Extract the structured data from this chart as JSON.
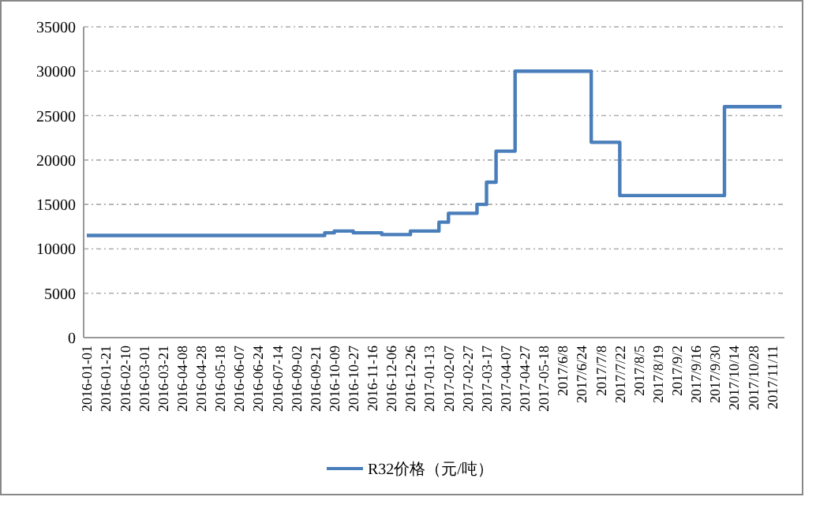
{
  "chart_data": {
    "type": "step",
    "categories": [
      "2016-01-01",
      null,
      "2016-01-21",
      null,
      "2016-02-10",
      null,
      "2016-03-01",
      null,
      "2016-03-21",
      null,
      "2016-04-08",
      null,
      "2016-04-28",
      null,
      "2016-05-18",
      null,
      "2016-06-07",
      null,
      "2016-06-24",
      null,
      "2016-07-14",
      null,
      "2016-09-02",
      null,
      "2016-09-21",
      null,
      "2016-10-09",
      null,
      "2016-10-27",
      null,
      "2016-11-16",
      null,
      "2016-12-06",
      null,
      "2016-12-26",
      null,
      "2017-01-13",
      null,
      "2017-02-07",
      null,
      "2017-02-27",
      null,
      "2017-03-17",
      null,
      "2017-04-07",
      null,
      "2017-04-27",
      null,
      "2017-05-18",
      null,
      "2017/6/8",
      null,
      "2017/6/24",
      null,
      "2017/7/8",
      null,
      "2017/7/22",
      null,
      "2017/8/5",
      null,
      "2017/8/19",
      null,
      "2017/9/2",
      null,
      "2017/9/16",
      null,
      "2017/9/30",
      null,
      "2017/10/14",
      null,
      "2017/10/28",
      null,
      "2017/11/11",
      null
    ],
    "series": [
      {
        "name": "R32价格（元/吨）",
        "color": "#4a7ebb",
        "values": [
          11500,
          11500,
          11500,
          11500,
          11500,
          11500,
          11500,
          11500,
          11500,
          11500,
          11500,
          11500,
          11500,
          11500,
          11500,
          11500,
          11500,
          11500,
          11500,
          11500,
          11500,
          11500,
          11500,
          11500,
          11500,
          11800,
          12000,
          12000,
          11800,
          11800,
          11800,
          11600,
          11600,
          11600,
          12000,
          12000,
          12000,
          13000,
          14000,
          14000,
          14000,
          15000,
          17500,
          21000,
          21000,
          30000,
          30000,
          30000,
          30000,
          30000,
          30000,
          30000,
          30000,
          22000,
          22000,
          22000,
          16000,
          16000,
          16000,
          16000,
          16000,
          16000,
          16000,
          16000,
          16000,
          16000,
          16000,
          26000,
          26000,
          26000,
          26000,
          26000,
          26000,
          26000
        ]
      }
    ],
    "ylim": [
      0,
      35000
    ],
    "yticks": [
      0,
      5000,
      10000,
      15000,
      20000,
      25000,
      30000,
      35000
    ],
    "grid": "y",
    "legend": "bottom",
    "marker": "none",
    "line_style": "solid"
  }
}
